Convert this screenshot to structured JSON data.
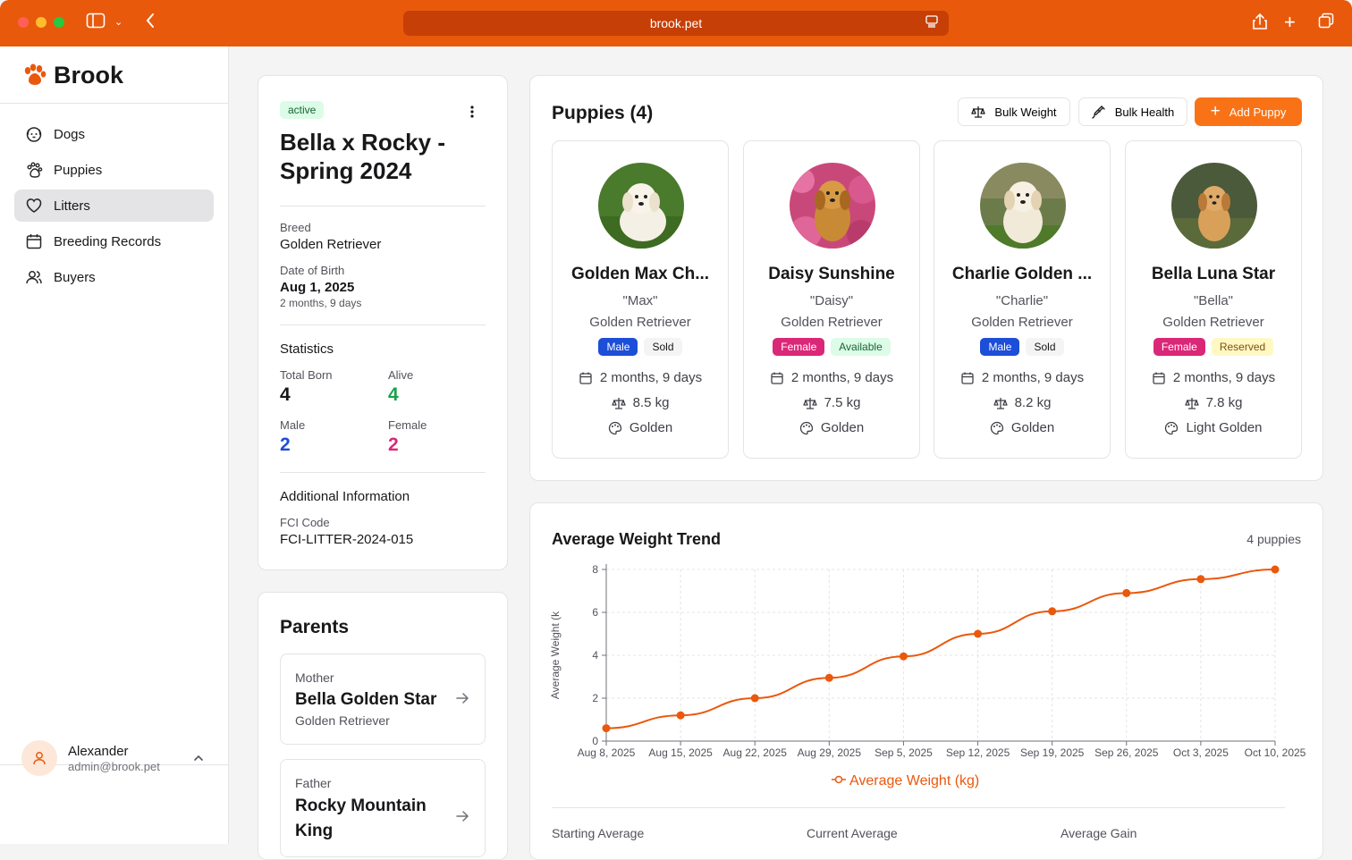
{
  "browser": {
    "url": "brook.pet"
  },
  "app": {
    "name": "Brook"
  },
  "nav": [
    {
      "label": "Dogs",
      "icon": "dog-icon"
    },
    {
      "label": "Puppies",
      "icon": "paw-icon"
    },
    {
      "label": "Litters",
      "icon": "heart-icon",
      "active": true
    },
    {
      "label": "Breeding Records",
      "icon": "calendar-icon"
    },
    {
      "label": "Buyers",
      "icon": "users-icon"
    }
  ],
  "user": {
    "name": "Alexander",
    "email": "admin@brook.pet"
  },
  "litter": {
    "status": "active",
    "title": "Bella x Rocky - Spring 2024",
    "breed_label": "Breed",
    "breed": "Golden Retriever",
    "dob_label": "Date of Birth",
    "dob": "Aug 1, 2025",
    "age": "2 months, 9 days",
    "stats_title": "Statistics",
    "stats": {
      "total_born_label": "Total Born",
      "total_born": "4",
      "alive_label": "Alive",
      "alive": "4",
      "male_label": "Male",
      "male": "2",
      "female_label": "Female",
      "female": "2"
    },
    "additional_title": "Additional Information",
    "fci_label": "FCI Code",
    "fci": "FCI-LITTER-2024-015"
  },
  "parents": {
    "title": "Parents",
    "mother": {
      "role": "Mother",
      "name": "Bella Golden Star",
      "breed": "Golden Retriever"
    },
    "father": {
      "role": "Father",
      "name": "Rocky Mountain King"
    }
  },
  "puppies": {
    "title": "Puppies (4)",
    "bulk_weight": "Bulk Weight",
    "bulk_health": "Bulk Health",
    "add": "Add Puppy",
    "items": [
      {
        "name": "Golden Max Ch...",
        "nick": "\"Max\"",
        "breed": "Golden Retriever",
        "sex": "Male",
        "status": "Sold",
        "age": "2 months, 9 days",
        "weight": "8.5 kg",
        "color": "Golden"
      },
      {
        "name": "Daisy Sunshine",
        "nick": "\"Daisy\"",
        "breed": "Golden Retriever",
        "sex": "Female",
        "status": "Available",
        "age": "2 months, 9 days",
        "weight": "7.5 kg",
        "color": "Golden"
      },
      {
        "name": "Charlie Golden ...",
        "nick": "\"Charlie\"",
        "breed": "Golden Retriever",
        "sex": "Male",
        "status": "Sold",
        "age": "2 months, 9 days",
        "weight": "8.2 kg",
        "color": "Golden"
      },
      {
        "name": "Bella Luna Star",
        "nick": "\"Bella\"",
        "breed": "Golden Retriever",
        "sex": "Female",
        "status": "Reserved",
        "age": "2 months, 9 days",
        "weight": "7.8 kg",
        "color": "Light Golden"
      }
    ]
  },
  "weight_trend": {
    "title": "Average Weight Trend",
    "count": "4 puppies",
    "summary": {
      "starting": "Starting Average",
      "current": "Current Average",
      "gain": "Average Gain"
    }
  },
  "chart_data": {
    "type": "line",
    "x": [
      "Aug 8, 2025",
      "Aug 15, 2025",
      "Aug 22, 2025",
      "Aug 29, 2025",
      "Sep 5, 2025",
      "Sep 12, 2025",
      "Sep 19, 2025",
      "Sep 26, 2025",
      "Oct 3, 2025",
      "Oct 10, 2025"
    ],
    "series": [
      {
        "name": "Average Weight (kg)",
        "values": [
          0.6,
          1.2,
          2.0,
          2.95,
          3.95,
          5.0,
          6.05,
          6.9,
          7.55,
          8.0
        ]
      }
    ],
    "ylabel": "Average Weight (k",
    "yticks": [
      "0",
      "2",
      "4",
      "6",
      "8"
    ],
    "ylim": [
      0,
      8
    ],
    "grid": true,
    "legend": "bottom",
    "color": "#ea580c"
  }
}
